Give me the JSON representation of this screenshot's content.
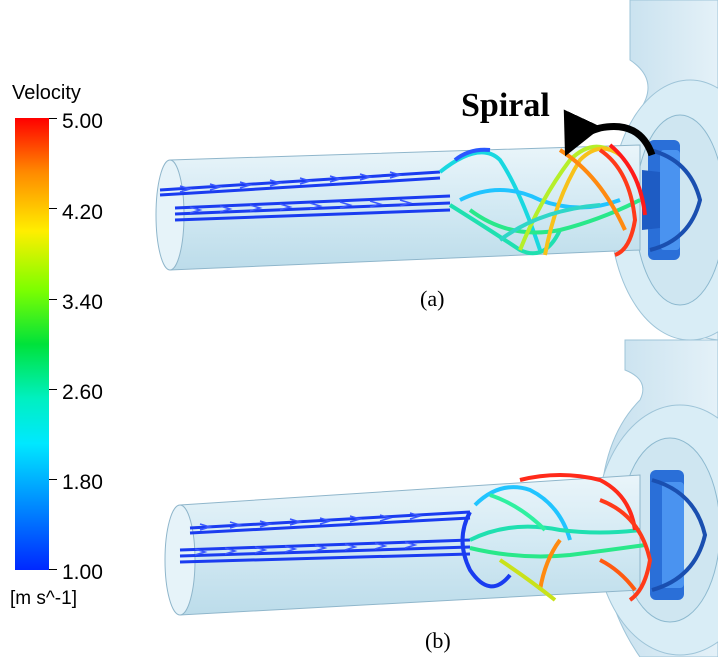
{
  "legend": {
    "title": "Velocity",
    "unit": "[m s^-1]",
    "ticks": [
      "5.00",
      "4.20",
      "3.40",
      "2.60",
      "1.80",
      "1.00"
    ]
  },
  "annotation": {
    "spiral": "Spiral"
  },
  "panels": [
    {
      "label": "(a)"
    },
    {
      "label": "(b)"
    }
  ],
  "colors": {
    "low": "#0028ff",
    "mid": "#00e23a",
    "high": "#ff0000",
    "pipe": "#d8ecf5"
  }
}
